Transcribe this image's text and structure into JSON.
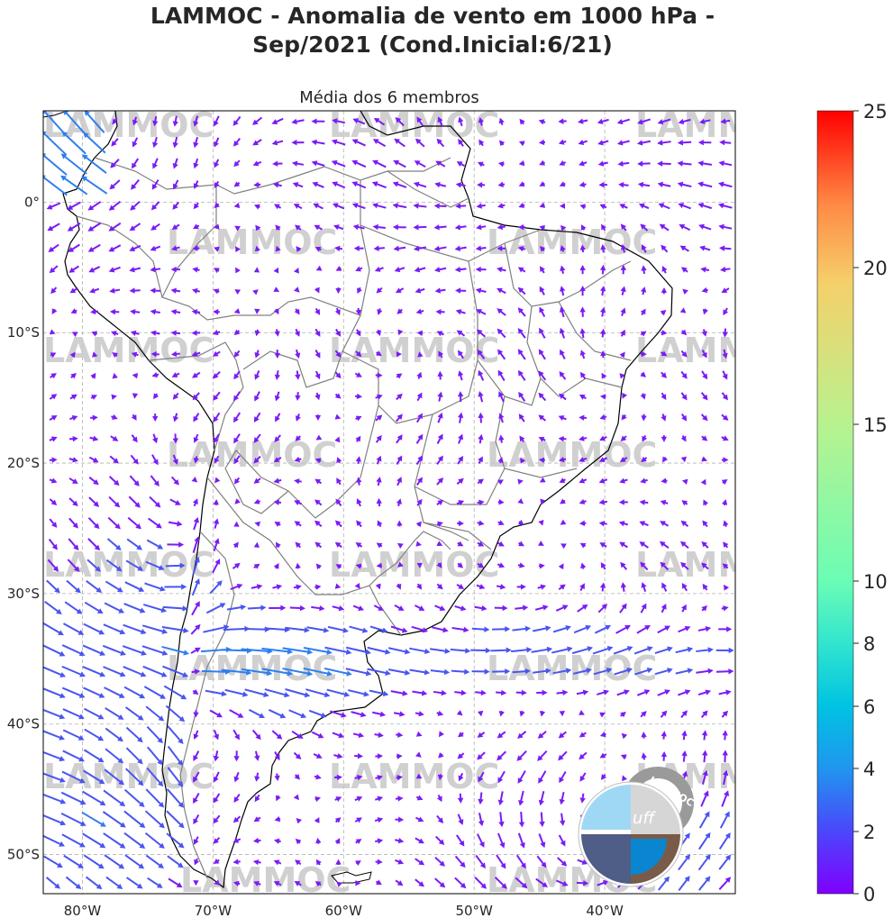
{
  "figure": {
    "title_line1": "LAMMOC - Anomalia de vento em 1000 hPa -",
    "title_line2": "Sep/2021 (Cond.Inicial:6/21)",
    "subtitle": "Média dos 6 membros",
    "watermark": "LAMMOC",
    "logo_text": "LAMMOC",
    "logo_uff": "uff"
  },
  "map": {
    "lon_ticks": [
      "80°W",
      "70°W",
      "60°W",
      "50°W",
      "40°W"
    ],
    "lat_ticks": [
      "0°",
      "10°S",
      "20°S",
      "30°S",
      "40°S",
      "50°S"
    ],
    "lon_range": [
      -83,
      -30
    ],
    "lat_range": [
      -53,
      7
    ],
    "grid": true
  },
  "colorbar": {
    "labels": [
      "0",
      "2",
      "4",
      "6",
      "8",
      "10",
      "15",
      "20",
      "25"
    ],
    "colormap": "rainbow",
    "colors": [
      "#7f00ff",
      "#4b47fb",
      "#1f96ef",
      "#00c3e2",
      "#32e5cf",
      "#6bfdb5",
      "#b8f28f",
      "#f5d06a",
      "#ff8a45",
      "#ff0000"
    ]
  },
  "colors": {
    "arrow_weak": "#7a1cf5",
    "arrow_medium": "#4a55f0",
    "arrow_strong": "#2f7ff0",
    "coast": "#000000",
    "borders": "#808080",
    "gridline": "#b0b0b0"
  }
}
